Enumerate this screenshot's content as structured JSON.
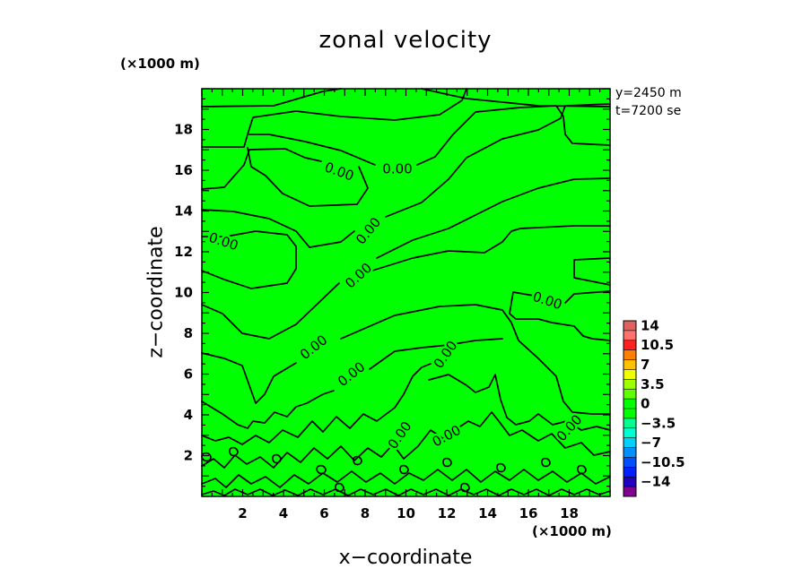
{
  "chart_data": {
    "type": "contour",
    "title": "zonal velocity",
    "xlabel": "x−coordinate",
    "ylabel": "z−coordinate",
    "x_scale_label": "(×1000 m)",
    "z_scale_label": "(×1000 m)",
    "info": [
      "y=2450 m",
      "t=7200 se"
    ],
    "xlim": [
      0,
      20
    ],
    "ylim": [
      0,
      20
    ],
    "x_ticks": [
      "2",
      "4",
      "6",
      "8",
      "10",
      "12",
      "14",
      "16",
      "18"
    ],
    "y_ticks": [
      "2",
      "4",
      "6",
      "8",
      "10",
      "12",
      "14",
      "16",
      "18"
    ],
    "contour_label": "0.00",
    "colorbar": {
      "levels": [
        "14",
        "10.5",
        "7",
        "3.5",
        "0",
        "−3.5",
        "−7",
        "−10.5",
        "−14"
      ],
      "colors": [
        "#e06060",
        "#ff7070",
        "#ff2020",
        "#ff8000",
        "#ffc000",
        "#f0ff00",
        "#a0ff00",
        "#60ff00",
        "#00ff00",
        "#00ff00",
        "#00ff90",
        "#00ffd0",
        "#00d0ff",
        "#0090ff",
        "#0050ff",
        "#0020ff",
        "#2000c0",
        "#800090"
      ]
    },
    "fill_color": "#00ff00"
  }
}
